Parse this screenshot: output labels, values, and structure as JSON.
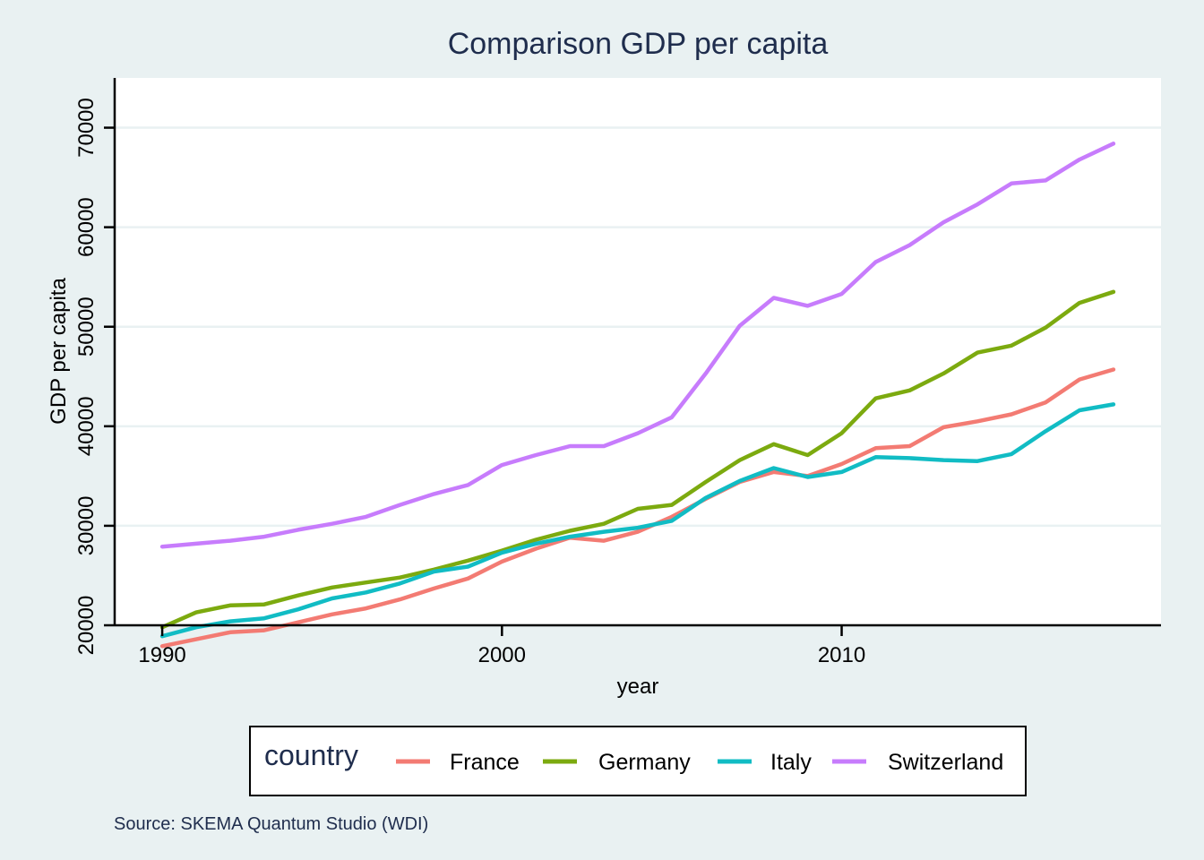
{
  "chart_data": {
    "type": "line",
    "title": "Comparison GDP per capita",
    "xlabel": "year",
    "ylabel": "GDP per capita",
    "caption": "Source: SKEMA Quantum Studio (WDI)",
    "xlim": [
      1988.6,
      2019.4
    ],
    "ylim": [
      20000,
      75000
    ],
    "x_ticks": [
      1990,
      2000,
      2010
    ],
    "y_ticks": [
      20000,
      30000,
      40000,
      50000,
      60000,
      70000
    ],
    "x_tick_labels": [
      "1990",
      "2000",
      "2010"
    ],
    "y_tick_labels": [
      "20000",
      "30000",
      "40000",
      "50000",
      "60000",
      "70000"
    ],
    "grid": true,
    "legend": {
      "title": "country",
      "position": "bottom"
    },
    "x": [
      1990,
      1991,
      1992,
      1993,
      1994,
      1995,
      1996,
      1997,
      1998,
      1999,
      2000,
      2001,
      2002,
      2003,
      2004,
      2005,
      2006,
      2007,
      2008,
      2009,
      2010,
      2011,
      2012,
      2013,
      2014,
      2015,
      2016,
      2017,
      2018
    ],
    "series": [
      {
        "name": "France",
        "color": "#f37b73",
        "values": [
          17900,
          18600,
          19300,
          19500,
          20300,
          21100,
          21700,
          22600,
          23700,
          24700,
          26400,
          27700,
          28800,
          28500,
          29400,
          30900,
          32700,
          34400,
          35400,
          35000,
          36200,
          37800,
          38000,
          39900,
          40500,
          41200,
          42400,
          44700,
          45700
        ]
      },
      {
        "name": "Germany",
        "color": "#7caa0f",
        "values": [
          19800,
          21300,
          22000,
          22100,
          23000,
          23800,
          24300,
          24800,
          25600,
          26500,
          27500,
          28600,
          29500,
          30200,
          31700,
          32100,
          34400,
          36600,
          38200,
          37100,
          39300,
          42800,
          43600,
          45300,
          47400,
          48100,
          49900,
          52400,
          53500
        ]
      },
      {
        "name": "Italy",
        "color": "#11bcc4",
        "values": [
          18900,
          19800,
          20400,
          20700,
          21600,
          22700,
          23300,
          24200,
          25400,
          25900,
          27300,
          28200,
          28900,
          29400,
          29800,
          30500,
          32800,
          34500,
          35800,
          34900,
          35400,
          36900,
          36800,
          36600,
          36500,
          37200,
          39500,
          41600,
          42200
        ]
      },
      {
        "name": "Switzerland",
        "color": "#c77cfc",
        "values": [
          27900,
          28200,
          28500,
          28900,
          29600,
          30200,
          30900,
          32100,
          33200,
          34100,
          36100,
          37100,
          38000,
          38000,
          39300,
          40900,
          45300,
          50100,
          52900,
          52100,
          53300,
          56500,
          58200,
          60500,
          62300,
          64400,
          64700,
          66800,
          68400
        ]
      }
    ]
  }
}
